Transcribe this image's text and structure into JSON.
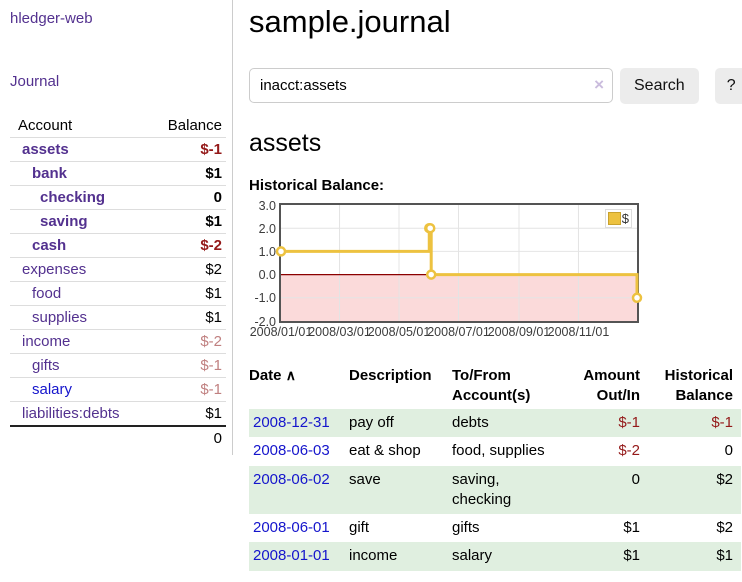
{
  "colors": {
    "accent_purple": "#53318f",
    "link_blue": "#1515cc",
    "negative_strong": "#941919",
    "negative_soft": "#c08080",
    "row_stripe_green": "#e0efe0",
    "button_bg": "#ececec",
    "search_clear_lavender": "#cabcdd"
  },
  "sidebar": {
    "brand": "hledger-web",
    "journal_label": "Journal",
    "header": {
      "account": "Account",
      "balance": "Balance"
    },
    "accounts": [
      {
        "name": "assets",
        "balance": "$-1"
      },
      {
        "name": "bank",
        "balance": "$1"
      },
      {
        "name": "checking",
        "balance": "0"
      },
      {
        "name": "saving",
        "balance": "$1"
      },
      {
        "name": "cash",
        "balance": "$-2"
      },
      {
        "name": "expenses",
        "balance": "$2"
      },
      {
        "name": "food",
        "balance": "$1"
      },
      {
        "name": "supplies",
        "balance": "$1"
      },
      {
        "name": "income",
        "balance": "$-2"
      },
      {
        "name": "gifts",
        "balance": "$-1"
      },
      {
        "name": "salary",
        "balance": "$-1"
      },
      {
        "name": "liabilities:debts",
        "balance": "$1"
      }
    ],
    "total": "0"
  },
  "main": {
    "title": "sample.journal",
    "search": {
      "value": "inacct:assets",
      "placeholder": "",
      "clear_icon": "×",
      "button_label": "Search",
      "help_label": "?"
    },
    "account_heading": "assets"
  },
  "chart_data": {
    "type": "line",
    "step": true,
    "title": "Historical Balance:",
    "series": [
      {
        "name": "$",
        "color": "#edc240",
        "points": [
          {
            "date": "2008-01-01",
            "value": 1
          },
          {
            "date": "2008-06-01",
            "value": 2
          },
          {
            "date": "2008-06-02",
            "value": 2
          },
          {
            "date": "2008-06-03",
            "value": 0
          },
          {
            "date": "2008-12-31",
            "value": -1
          }
        ]
      }
    ],
    "xlim": [
      "2008-01-01",
      "2008-12-31"
    ],
    "ylim": [
      -2,
      3
    ],
    "x_ticks": [
      {
        "date": "2008-01-01",
        "label": "2008/01/01"
      },
      {
        "date": "2008-03-01",
        "label": "2008/03/01"
      },
      {
        "date": "2008-05-01",
        "label": "2008/05/01"
      },
      {
        "date": "2008-07-01",
        "label": "2008/07/01"
      },
      {
        "date": "2008-09-01",
        "label": "2008/09/01"
      },
      {
        "date": "2008-11-01",
        "label": "2008/11/01"
      }
    ],
    "y_ticks": [
      "3.0",
      "2.0",
      "1.0",
      "0.0",
      "-1.0",
      "-2.0"
    ],
    "grid": true,
    "legend_position": "top-right",
    "grid_color": "#e4e4e4",
    "negative_region_color": "#fbdada",
    "zero_line_color": "#8b0000"
  },
  "register": {
    "headers": {
      "date": "Date",
      "description": "Description",
      "accounts": "To/From Account(s)",
      "amount": "Amount Out/In",
      "balance": "Historical Balance"
    },
    "sort_icon": "∧",
    "rows": [
      {
        "date": "2008-12-31",
        "description": "pay off",
        "accounts": "debts",
        "amount": "$-1",
        "balance": "$-1"
      },
      {
        "date": "2008-06-03",
        "description": "eat & shop",
        "accounts": "food, supplies",
        "amount": "$-2",
        "balance": "0"
      },
      {
        "date": "2008-06-02",
        "description": "save",
        "accounts": "saving, checking",
        "amount": "0",
        "balance": "$2"
      },
      {
        "date": "2008-06-01",
        "description": "gift",
        "accounts": "gifts",
        "amount": "$1",
        "balance": "$2"
      },
      {
        "date": "2008-01-01",
        "description": "income",
        "accounts": "salary",
        "amount": "$1",
        "balance": "$1"
      }
    ]
  }
}
